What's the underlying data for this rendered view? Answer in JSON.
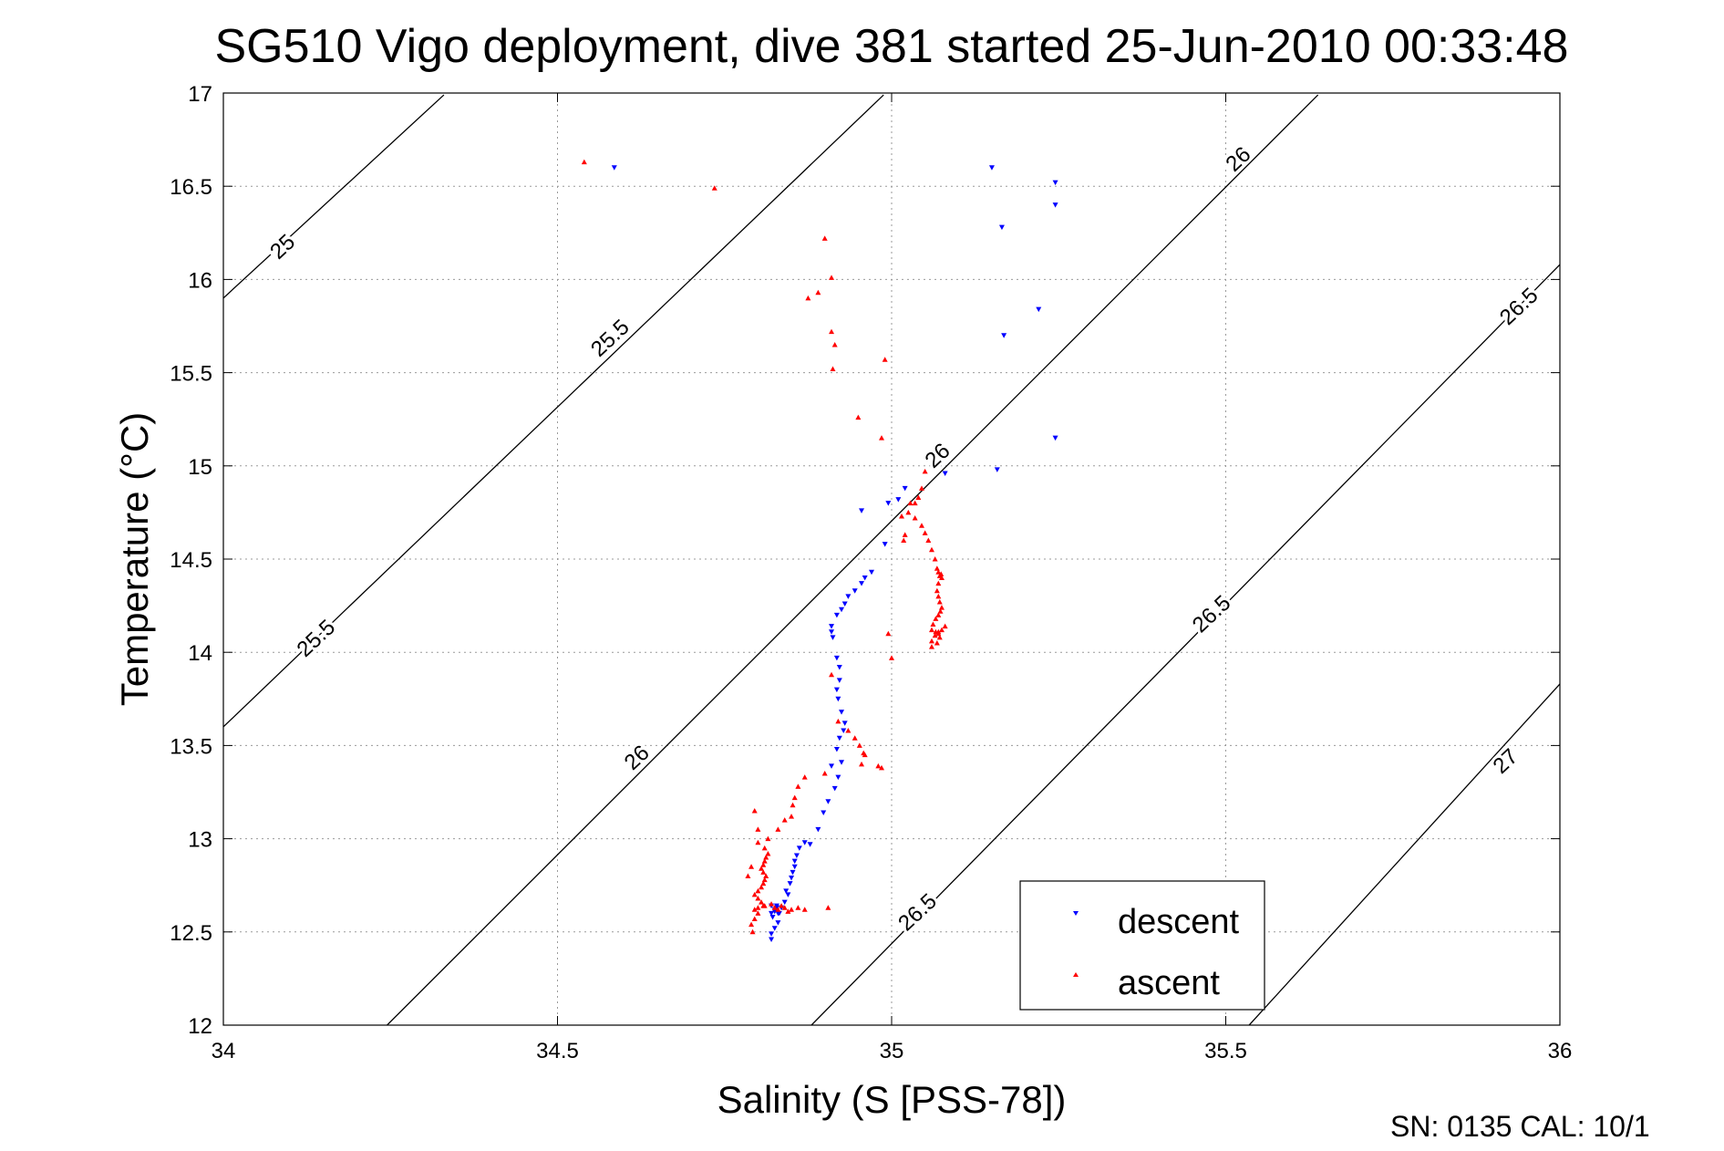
{
  "chart_data": {
    "type": "scatter",
    "title": "SG510 Vigo deployment, dive 381 started 25-Jun-2010 00:33:48",
    "xlabel": "Salinity (S [PSS-78])",
    "ylabel": "Temperature (°C)",
    "xlim": [
      34,
      36
    ],
    "ylim": [
      12,
      17
    ],
    "xticks": [
      "34",
      "34.5",
      "35",
      "35.5",
      "36"
    ],
    "yticks": [
      "12",
      "12.5",
      "13",
      "13.5",
      "14",
      "14.5",
      "15",
      "15.5",
      "16",
      "16.5",
      "17"
    ],
    "grid": true,
    "legend": "bottom-center",
    "footer": "SN: 0135  CAL: 10/1",
    "density_contours": [
      {
        "x": [
          34.0,
          34.33
        ],
        "y": [
          15.9,
          16.99
        ]
      },
      {
        "x": [
          34.0,
          34.988
        ],
        "y": [
          13.6,
          16.99
        ]
      },
      {
        "x": [
          34.245,
          35.638
        ],
        "y": [
          12.0,
          16.99
        ]
      },
      {
        "x": [
          34.88,
          36.0
        ],
        "y": [
          12.0,
          16.08
        ]
      },
      {
        "x": [
          35.535,
          36.0
        ],
        "y": [
          12.0,
          13.83
        ]
      }
    ],
    "contour_labels": [
      {
        "text": "25",
        "x": 34.09,
        "y": 16.17
      },
      {
        "text": "25.5",
        "x": 34.58,
        "y": 15.68
      },
      {
        "text": "26",
        "x": 35.52,
        "y": 16.64
      },
      {
        "text": "26.5",
        "x": 35.94,
        "y": 15.85
      },
      {
        "text": "26",
        "x": 35.07,
        "y": 15.05
      },
      {
        "text": "25.5",
        "x": 34.14,
        "y": 14.07
      },
      {
        "text": "26.5",
        "x": 35.48,
        "y": 14.2
      },
      {
        "text": "26",
        "x": 34.62,
        "y": 13.43
      },
      {
        "text": "27",
        "x": 35.92,
        "y": 13.41
      },
      {
        "text": "26.5",
        "x": 35.04,
        "y": 12.6
      }
    ],
    "series": [
      {
        "name": "descent",
        "color": "#0000ff",
        "marker": "triangle-down",
        "x": [
          34.585,
          35.15,
          35.245,
          35.245,
          35.165,
          35.22,
          35.168,
          35.245,
          35.158,
          35.08,
          35.02,
          35.01,
          34.995,
          34.955,
          34.99,
          34.97,
          34.96,
          34.955,
          34.945,
          34.935,
          34.93,
          34.925,
          34.918,
          34.91,
          34.91,
          34.912,
          34.918,
          34.922,
          34.922,
          34.918,
          34.92,
          34.925,
          34.93,
          34.928,
          34.922,
          34.918,
          34.91,
          34.925,
          34.92,
          34.915,
          34.905,
          34.898,
          34.89,
          34.878,
          34.87,
          34.862,
          34.858,
          34.855,
          34.855,
          34.852,
          34.85,
          34.848,
          34.842,
          34.845,
          34.84,
          34.835,
          34.828,
          34.825,
          34.82,
          34.822,
          34.825,
          34.83,
          34.826,
          34.82,
          34.828,
          34.832,
          34.83,
          34.825,
          34.82,
          34.82
        ],
        "y": [
          16.6,
          16.6,
          16.52,
          16.4,
          16.28,
          15.84,
          15.7,
          15.15,
          14.98,
          14.96,
          14.88,
          14.82,
          14.8,
          14.76,
          14.58,
          14.43,
          14.4,
          14.37,
          14.33,
          14.3,
          14.26,
          14.23,
          14.2,
          14.14,
          14.11,
          14.08,
          13.97,
          13.92,
          13.85,
          13.8,
          13.75,
          13.68,
          13.62,
          13.58,
          13.54,
          13.48,
          13.39,
          13.41,
          13.33,
          13.27,
          13.2,
          13.14,
          13.05,
          12.97,
          12.98,
          12.95,
          12.91,
          12.88,
          12.85,
          12.82,
          12.79,
          12.76,
          12.72,
          12.7,
          12.66,
          12.63,
          12.64,
          12.62,
          12.6,
          12.58,
          12.61,
          12.6,
          12.62,
          12.64,
          12.63,
          12.6,
          12.55,
          12.52,
          12.49,
          12.46
        ]
      },
      {
        "name": "ascent",
        "color": "#ff0000",
        "marker": "triangle-up",
        "x": [
          34.54,
          34.735,
          34.9,
          34.91,
          34.89,
          34.875,
          34.91,
          34.915,
          34.912,
          34.99,
          34.95,
          34.985,
          35.05,
          35.045,
          35.04,
          35.035,
          35.025,
          35.035,
          35.045,
          35.05,
          35.055,
          35.06,
          35.065,
          35.068,
          35.07,
          35.072,
          35.075,
          35.074,
          35.07,
          35.068,
          35.07,
          35.072,
          35.075,
          35.073,
          35.07,
          35.066,
          35.062,
          35.06,
          35.066,
          35.07,
          35.075,
          35.08,
          35.072,
          35.068,
          35.06,
          35.06,
          35.065,
          35.07,
          35.028,
          35.015,
          35.02,
          35.018,
          35.0,
          34.995,
          34.91,
          34.92,
          34.935,
          34.945,
          34.952,
          34.958,
          34.96,
          34.955,
          34.98,
          34.985,
          34.9,
          34.87,
          34.86,
          34.855,
          34.852,
          34.85,
          34.84,
          34.83,
          34.815,
          34.8,
          34.81,
          34.815,
          34.812,
          34.81,
          34.808,
          34.805,
          34.808,
          34.812,
          34.81,
          34.808,
          34.805,
          34.8,
          34.795,
          34.8,
          34.805,
          34.808,
          34.8,
          34.795,
          34.79,
          34.792,
          34.795,
          34.8,
          34.81,
          34.82,
          34.825,
          34.83,
          34.835,
          34.84,
          34.845,
          34.85,
          34.86,
          34.87,
          34.79,
          34.785,
          34.795,
          34.8,
          34.905
        ],
        "y": [
          16.63,
          16.49,
          16.22,
          16.01,
          15.93,
          15.9,
          15.72,
          15.65,
          15.52,
          15.57,
          15.26,
          15.15,
          14.97,
          14.88,
          14.83,
          14.8,
          14.75,
          14.72,
          14.68,
          14.64,
          14.6,
          14.55,
          14.5,
          14.45,
          14.43,
          14.41,
          14.4,
          14.42,
          14.37,
          14.33,
          14.3,
          14.27,
          14.24,
          14.22,
          14.2,
          14.18,
          14.15,
          14.12,
          14.11,
          14.1,
          14.12,
          14.14,
          14.08,
          14.05,
          14.03,
          14.06,
          14.09,
          14.11,
          14.8,
          14.73,
          14.63,
          14.6,
          13.97,
          14.1,
          13.88,
          13.63,
          13.58,
          13.54,
          13.5,
          13.46,
          13.45,
          13.4,
          13.39,
          13.38,
          13.35,
          13.33,
          13.28,
          13.22,
          13.18,
          13.12,
          13.1,
          13.05,
          13.0,
          12.98,
          12.95,
          12.92,
          12.9,
          12.88,
          12.86,
          12.84,
          12.82,
          12.8,
          12.78,
          12.76,
          12.74,
          12.72,
          12.7,
          12.68,
          12.66,
          12.64,
          12.6,
          12.57,
          12.54,
          12.5,
          12.62,
          12.63,
          12.64,
          12.65,
          12.63,
          12.62,
          12.64,
          12.63,
          12.61,
          12.62,
          12.63,
          12.62,
          12.85,
          12.8,
          13.15,
          13.05,
          12.63
        ]
      }
    ]
  }
}
